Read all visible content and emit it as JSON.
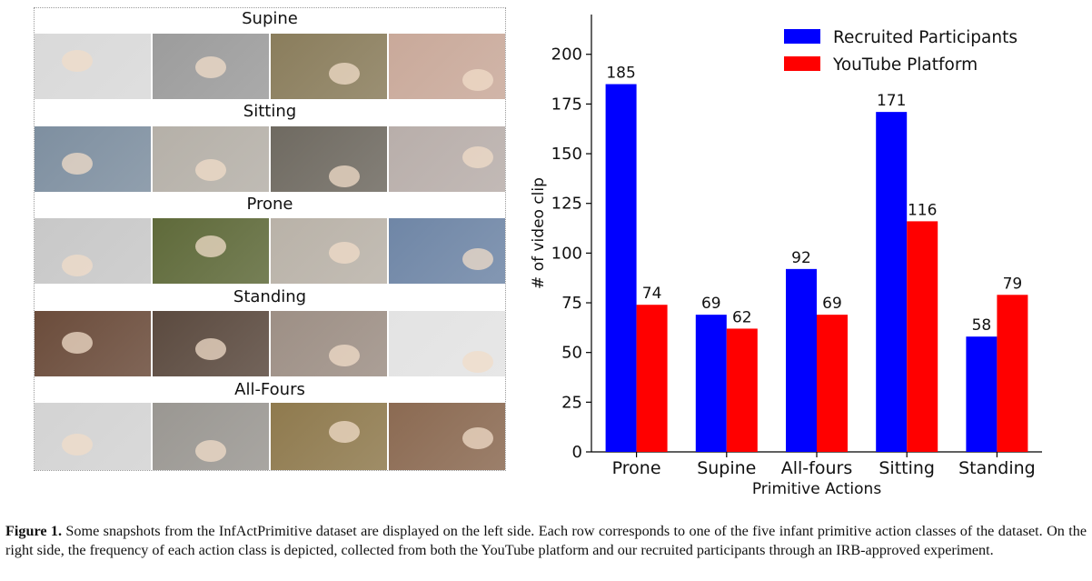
{
  "collage": {
    "rows": [
      {
        "label": "Supine",
        "thumb_colors": [
          "#d9d9d9",
          "#9c9c9c",
          "#8a7d5c",
          "#c9a99a"
        ]
      },
      {
        "label": "Sitting",
        "thumb_colors": [
          "#7e8fa0",
          "#b5b0a8",
          "#6f6a61",
          "#b8aeaa"
        ]
      },
      {
        "label": "Prone",
        "thumb_colors": [
          "#c8c8c8",
          "#5f6a3a",
          "#b9b2a8",
          "#6f86a6"
        ]
      },
      {
        "label": "Standing",
        "thumb_colors": [
          "#6b4c3b",
          "#5b4a3f",
          "#9d8f85",
          "#e3e3e3"
        ]
      },
      {
        "label": "All-Fours",
        "thumb_colors": [
          "#d3d3d3",
          "#9a9792",
          "#8f7a4e",
          "#8b6a52"
        ]
      }
    ]
  },
  "chart_data": {
    "type": "bar",
    "categories": [
      "Prone",
      "Supine",
      "All-fours",
      "Sitting",
      "Standing"
    ],
    "series": [
      {
        "name": "Recruited Participants",
        "color": "#0000ff",
        "values": [
          185,
          69,
          92,
          171,
          58
        ]
      },
      {
        "name": "YouTube Platform",
        "color": "#ff0000",
        "values": [
          74,
          62,
          69,
          116,
          79
        ]
      }
    ],
    "xlabel": "Primitive Actions",
    "ylabel": "# of video clip",
    "ylim": [
      0,
      220
    ],
    "yticks": [
      0,
      25,
      50,
      75,
      100,
      125,
      150,
      175,
      200
    ],
    "grid": false,
    "legend": "top-right"
  },
  "caption": {
    "label": "Figure 1.",
    "text": "Some snapshots from the InfActPrimitive dataset are displayed on the left side. Each row corresponds to one of the five infant primitive action classes of the dataset. On the right side, the frequency of each action class is depicted, collected from both the YouTube platform and our recruited participants through an IRB-approved experiment."
  }
}
